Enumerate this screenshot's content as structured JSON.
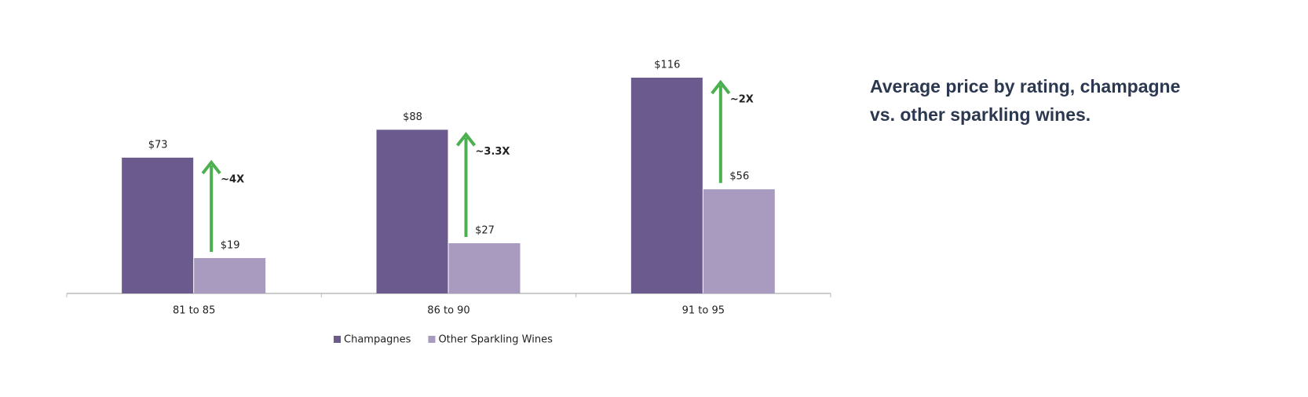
{
  "chart_data": {
    "type": "bar",
    "title": "Average price by rating, champagne vs. other sparkling wines.",
    "categories": [
      "81 to 85",
      "86 to 90",
      "91 to 95"
    ],
    "series": [
      {
        "name": "Champagnes",
        "color": "#6b5a8e",
        "values": [
          73,
          88,
          116
        ],
        "value_labels": [
          "$73",
          "$88",
          "$116"
        ]
      },
      {
        "name": "Other Sparkling Wines",
        "color": "#a89bbf",
        "values": [
          19,
          27,
          56
        ],
        "value_labels": [
          "$19",
          "$27",
          "$56"
        ]
      }
    ],
    "annotations": [
      "~4X",
      "~3.3X",
      "~2X"
    ],
    "annotation_color": "#4caf50"
  }
}
